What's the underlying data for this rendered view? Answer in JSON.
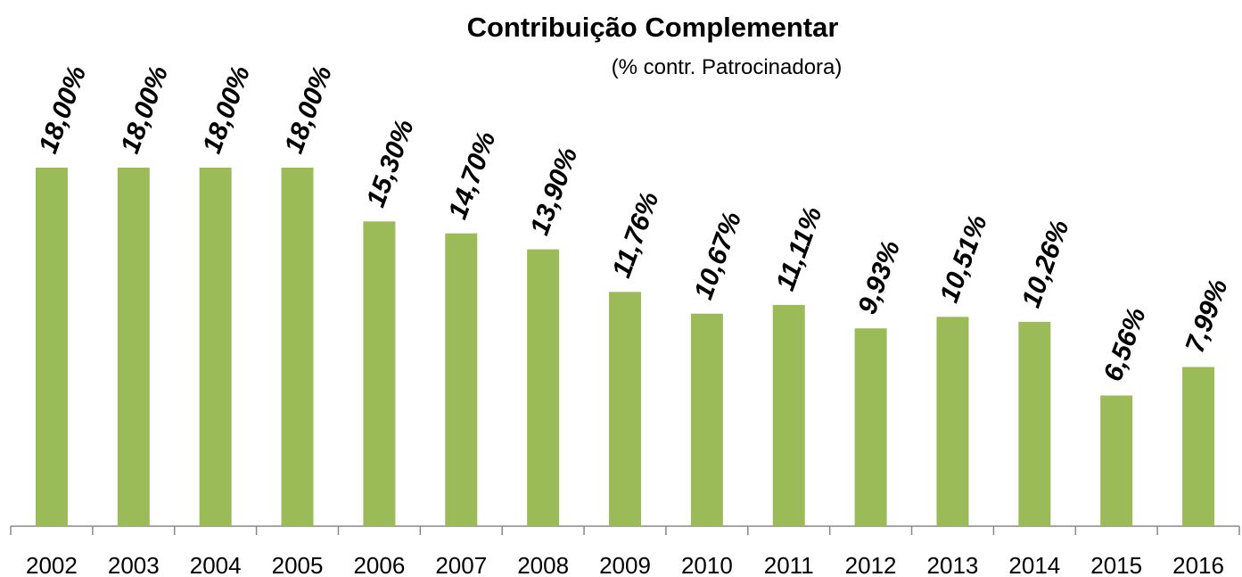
{
  "chart_data": {
    "type": "bar",
    "title": "Contribuição Complementar",
    "subtitle": "(% contr. Patrocinadora)",
    "categories": [
      "2002",
      "2003",
      "2004",
      "2005",
      "2006",
      "2007",
      "2008",
      "2009",
      "2010",
      "2011",
      "2012",
      "2013",
      "2014",
      "2015",
      "2016"
    ],
    "values": [
      18.0,
      18.0,
      18.0,
      18.0,
      15.3,
      14.7,
      13.9,
      11.76,
      10.67,
      11.11,
      9.93,
      10.51,
      10.26,
      6.56,
      7.99
    ],
    "value_labels": [
      "18,00%",
      "18,00%",
      "18,00%",
      "18,00%",
      "15,30%",
      "14,70%",
      "13,90%",
      "11,76%",
      "10,67%",
      "11,11%",
      "9,93%",
      "10,51%",
      "10,26%",
      "6,56%",
      "7,99%"
    ],
    "color": "#9bbb59"
  }
}
